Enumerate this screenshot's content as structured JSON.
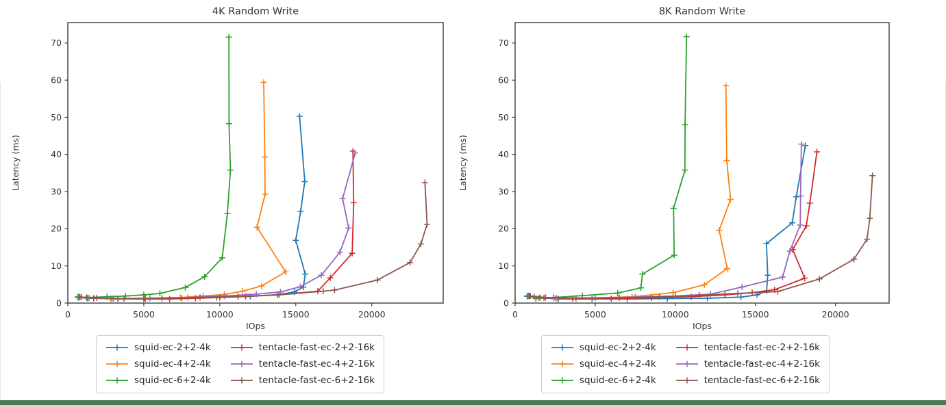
{
  "page": {
    "background": "#ffffff",
    "footer_bar_color": "#4a7a55",
    "axis_color": "#3b3b3b",
    "text_color": "#333333"
  },
  "chart_data": [
    {
      "type": "line",
      "title": "4K  Random Write",
      "xlabel": "IOps",
      "ylabel": "Latency (ms)",
      "xlim": [
        0,
        24700
      ],
      "ylim": [
        0,
        75.5
      ],
      "xticks": [
        0,
        5000,
        10000,
        15000,
        20000
      ],
      "yticks": [
        0,
        10,
        20,
        30,
        40,
        50,
        60,
        70
      ],
      "grid": false,
      "legend_position": "below",
      "marker": "plus",
      "series": [
        {
          "name": "squid-ec-2+2-4k",
          "color": "#1f77b4",
          "points": [
            [
              700,
              1.5
            ],
            [
              1300,
              1.3
            ],
            [
              2900,
              1.2
            ],
            [
              5100,
              1.2
            ],
            [
              7500,
              1.3
            ],
            [
              9800,
              1.5
            ],
            [
              12000,
              1.8
            ],
            [
              13900,
              2.3
            ],
            [
              14900,
              3.0
            ],
            [
              15500,
              4.3
            ],
            [
              15620,
              7.8
            ],
            [
              15000,
              16.9
            ],
            [
              15320,
              24.7
            ],
            [
              15590,
              32.7
            ],
            [
              15250,
              50.3
            ]
          ]
        },
        {
          "name": "squid-ec-4+2-4k",
          "color": "#ff7f0e",
          "points": [
            [
              650,
              1.6
            ],
            [
              1200,
              1.4
            ],
            [
              2800,
              1.2
            ],
            [
              5050,
              1.3
            ],
            [
              7400,
              1.5
            ],
            [
              8900,
              1.9
            ],
            [
              10300,
              2.3
            ],
            [
              11500,
              3.2
            ],
            [
              12750,
              4.6
            ],
            [
              14330,
              8.4
            ],
            [
              12450,
              20.4
            ],
            [
              12980,
              29.3
            ],
            [
              12960,
              39.3
            ],
            [
              12890,
              59.4
            ]
          ]
        },
        {
          "name": "squid-ec-6+2-4k",
          "color": "#2ca02c",
          "points": [
            [
              700,
              1.7
            ],
            [
              1250,
              1.5
            ],
            [
              2580,
              1.7
            ],
            [
              3800,
              1.9
            ],
            [
              5000,
              2.2
            ],
            [
              6060,
              2.6
            ],
            [
              7730,
              4.2
            ],
            [
              9000,
              7.1
            ],
            [
              10160,
              12.2
            ],
            [
              10500,
              24.1
            ],
            [
              10700,
              35.8
            ],
            [
              10610,
              48.3
            ],
            [
              10600,
              71.6
            ]
          ]
        },
        {
          "name": "tentacle-fast-ec-2+2-16k",
          "color": "#d62728",
          "points": [
            [
              800,
              1.6
            ],
            [
              1700,
              1.3
            ],
            [
              3300,
              1.1
            ],
            [
              5000,
              1.1
            ],
            [
              6700,
              1.1
            ],
            [
              8400,
              1.3
            ],
            [
              10000,
              1.5
            ],
            [
              11700,
              1.8
            ],
            [
              13800,
              2.2
            ],
            [
              16450,
              3.2
            ],
            [
              17270,
              6.8
            ],
            [
              18710,
              13.4
            ],
            [
              18810,
              27.0
            ],
            [
              18760,
              40.9
            ]
          ]
        },
        {
          "name": "tentacle-fast-ec-4+2-16k",
          "color": "#9467bd",
          "points": [
            [
              750,
              1.6
            ],
            [
              1400,
              1.4
            ],
            [
              3000,
              1.2
            ],
            [
              5400,
              1.3
            ],
            [
              7900,
              1.5
            ],
            [
              10300,
              1.9
            ],
            [
              12400,
              2.4
            ],
            [
              14000,
              3.0
            ],
            [
              15300,
              4.4
            ],
            [
              16680,
              7.5
            ],
            [
              17910,
              13.7
            ],
            [
              18480,
              20.2
            ],
            [
              18080,
              28.1
            ],
            [
              18910,
              40.4
            ]
          ]
        },
        {
          "name": "tentacle-fast-ec-6+2-16k",
          "color": "#8c564b",
          "points": [
            [
              900,
              1.6
            ],
            [
              1900,
              1.4
            ],
            [
              3700,
              1.2
            ],
            [
              6200,
              1.3
            ],
            [
              8700,
              1.5
            ],
            [
              11200,
              1.8
            ],
            [
              13900,
              2.2
            ],
            [
              16800,
              3.2
            ],
            [
              17550,
              3.5
            ],
            [
              20370,
              6.2
            ],
            [
              22520,
              10.9
            ],
            [
              23230,
              15.9
            ],
            [
              23640,
              21.2
            ],
            [
              23500,
              32.4
            ]
          ]
        }
      ]
    },
    {
      "type": "line",
      "title": "8K  Random Write",
      "xlabel": "IOps",
      "ylabel": "Latency (ms)",
      "xlim": [
        0,
        23350
      ],
      "ylim": [
        0,
        75.5
      ],
      "xticks": [
        0,
        5000,
        10000,
        15000,
        20000
      ],
      "yticks": [
        0,
        10,
        20,
        30,
        40,
        50,
        60,
        70
      ],
      "grid": false,
      "legend_position": "below",
      "marker": "plus",
      "series": [
        {
          "name": "squid-ec-2+2-4k",
          "color": "#1f77b4",
          "points": [
            [
              750,
              1.8
            ],
            [
              1500,
              1.4
            ],
            [
              2700,
              1.1
            ],
            [
              4800,
              1.1
            ],
            [
              7000,
              1.1
            ],
            [
              9500,
              1.2
            ],
            [
              12000,
              1.3
            ],
            [
              14100,
              1.6
            ],
            [
              15100,
              2.2
            ],
            [
              15700,
              3.3
            ],
            [
              15770,
              7.5
            ],
            [
              15690,
              16.0
            ],
            [
              17300,
              21.6
            ],
            [
              17550,
              28.6
            ],
            [
              18120,
              42.4
            ]
          ]
        },
        {
          "name": "squid-ec-4+2-4k",
          "color": "#ff7f0e",
          "points": [
            [
              800,
              1.9
            ],
            [
              1600,
              1.5
            ],
            [
              2600,
              1.3
            ],
            [
              5000,
              1.4
            ],
            [
              7300,
              1.7
            ],
            [
              9860,
              2.8
            ],
            [
              11810,
              4.9
            ],
            [
              13240,
              9.3
            ],
            [
              12740,
              19.6
            ],
            [
              13450,
              27.9
            ],
            [
              13210,
              38.4
            ],
            [
              13160,
              58.5
            ]
          ]
        },
        {
          "name": "squid-ec-6+2-4k",
          "color": "#2ca02c",
          "points": [
            [
              850,
              1.9
            ],
            [
              1300,
              1.2
            ],
            [
              2400,
              1.5
            ],
            [
              4200,
              2.0
            ],
            [
              6400,
              2.7
            ],
            [
              7850,
              4.1
            ],
            [
              7950,
              7.8
            ],
            [
              9930,
              12.9
            ],
            [
              9890,
              25.5
            ],
            [
              10600,
              35.8
            ],
            [
              10610,
              48.0
            ],
            [
              10700,
              71.7
            ]
          ]
        },
        {
          "name": "tentacle-fast-ec-2+2-16k",
          "color": "#d62728",
          "points": [
            [
              900,
              1.9
            ],
            [
              1800,
              1.4
            ],
            [
              3600,
              1.2
            ],
            [
              6000,
              1.2
            ],
            [
              8500,
              1.4
            ],
            [
              11000,
              1.7
            ],
            [
              13100,
              2.2
            ],
            [
              14800,
              2.8
            ],
            [
              16200,
              3.6
            ],
            [
              18080,
              6.7
            ],
            [
              17330,
              14.4
            ],
            [
              18180,
              20.8
            ],
            [
              18400,
              26.9
            ],
            [
              18840,
              40.7
            ]
          ]
        },
        {
          "name": "tentacle-fast-ec-4+2-16k",
          "color": "#9467bd",
          "points": [
            [
              800,
              2.0
            ],
            [
              1200,
              1.7
            ],
            [
              2500,
              1.3
            ],
            [
              5000,
              1.4
            ],
            [
              7500,
              1.6
            ],
            [
              10000,
              1.9
            ],
            [
              12200,
              2.4
            ],
            [
              14160,
              4.3
            ],
            [
              16700,
              7.0
            ],
            [
              17150,
              14.0
            ],
            [
              17800,
              21.0
            ],
            [
              17820,
              28.8
            ],
            [
              17870,
              42.8
            ]
          ]
        },
        {
          "name": "tentacle-fast-ec-6+2-16k",
          "color": "#8c564b",
          "points": [
            [
              950,
              1.9
            ],
            [
              1900,
              1.5
            ],
            [
              3800,
              1.3
            ],
            [
              6500,
              1.4
            ],
            [
              9000,
              1.7
            ],
            [
              11500,
              2.1
            ],
            [
              13900,
              2.6
            ],
            [
              16400,
              3.1
            ],
            [
              19000,
              6.5
            ],
            [
              21150,
              11.8
            ],
            [
              21970,
              17.2
            ],
            [
              22140,
              22.8
            ],
            [
              22310,
              34.3
            ]
          ]
        }
      ]
    }
  ]
}
